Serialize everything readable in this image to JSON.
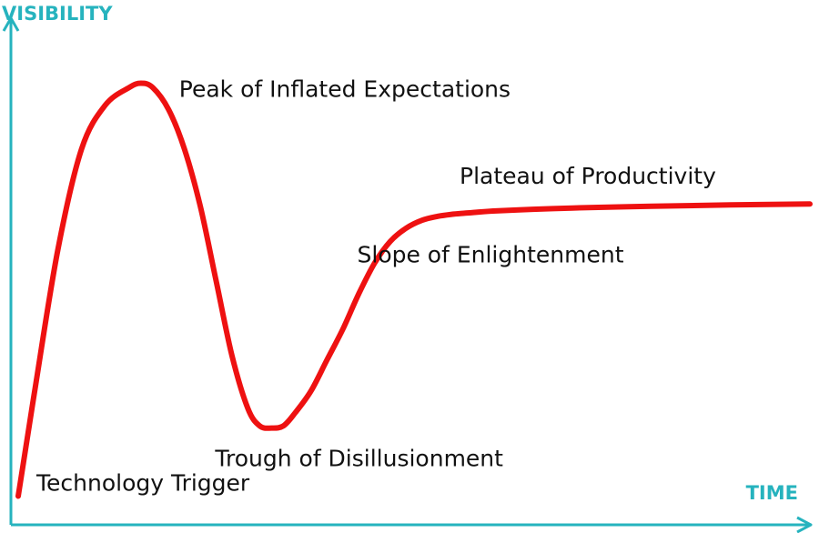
{
  "chart_data": {
    "type": "line",
    "title": "",
    "xlabel": "TIME",
    "ylabel": "VISIBILITY",
    "xlim": [
      0,
      100
    ],
    "ylim": [
      0,
      100
    ],
    "grid": false,
    "colors": {
      "axis": "#26b3be",
      "curve": "#ee1111",
      "label": "#111111"
    },
    "series": [
      {
        "x": [
          0,
          2,
          5,
          8,
          11,
          14,
          15.5,
          17,
          19,
          21,
          23,
          25,
          27,
          29,
          30.5,
          32,
          33.5,
          35,
          37,
          39,
          41,
          43,
          45,
          47,
          49,
          51,
          53,
          55,
          57,
          60,
          65,
          70,
          80,
          90,
          100
        ],
        "values": [
          3,
          26,
          59,
          82,
          92,
          96,
          97,
          96,
          91,
          82,
          69,
          52,
          35,
          23,
          19,
          18.5,
          19,
          22,
          27,
          34,
          41,
          49,
          56,
          61,
          64,
          65.8,
          66.7,
          67.2,
          67.5,
          67.9,
          68.3,
          68.6,
          69,
          69.3,
          69.5
        ]
      }
    ],
    "annotations": [
      {
        "text": "Technology Trigger",
        "x": 0,
        "y": 3
      },
      {
        "text": "Peak of Inflated Expectations",
        "x": 15.5,
        "y": 97
      },
      {
        "text": "Trough of Disillusionment",
        "x": 32,
        "y": 18.5
      },
      {
        "text": "Slope of Enlightenment",
        "x": 45,
        "y": 56
      },
      {
        "text": "Plateau of Productivity",
        "x": 60,
        "y": 67.9
      }
    ]
  }
}
